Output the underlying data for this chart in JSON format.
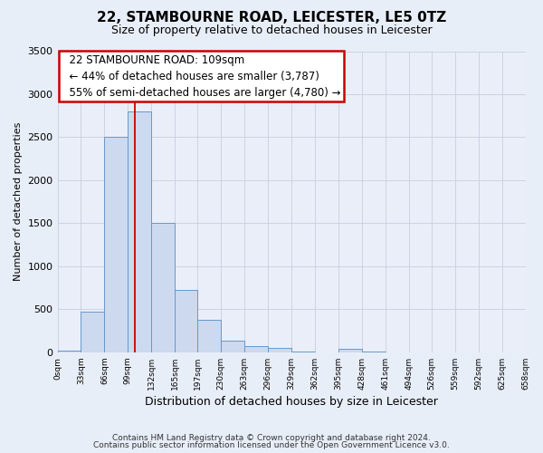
{
  "title": "22, STAMBOURNE ROAD, LEICESTER, LE5 0TZ",
  "subtitle": "Size of property relative to detached houses in Leicester",
  "xlabel": "Distribution of detached houses by size in Leicester",
  "ylabel": "Number of detached properties",
  "bar_color": "#ccd9ee",
  "bar_edge_color": "#6699cc",
  "background_color": "#e8eef8",
  "plot_bg_color": "#eaeef8",
  "grid_color": "#c8cede",
  "vline_x": 109,
  "vline_color": "#cc0000",
  "ylim": [
    0,
    3500
  ],
  "bin_edges": [
    0,
    33,
    66,
    99,
    132,
    165,
    197,
    230,
    263,
    296,
    329,
    362,
    395,
    428,
    461,
    494,
    526,
    559,
    592,
    625,
    658
  ],
  "bar_heights": [
    20,
    470,
    2500,
    2800,
    1500,
    730,
    380,
    140,
    70,
    50,
    10,
    0,
    40,
    10,
    0,
    0,
    0,
    0,
    0,
    0
  ],
  "annotation_line1": "22 STAMBOURNE ROAD: 109sqm",
  "annotation_line2": "← 44% of detached houses are smaller (3,787)",
  "annotation_line3": "55% of semi-detached houses are larger (4,780) →",
  "annotation_box_color": "#ffffff",
  "annotation_border_color": "#cc0000",
  "footer_line1": "Contains HM Land Registry data © Crown copyright and database right 2024.",
  "footer_line2": "Contains public sector information licensed under the Open Government Licence v3.0.",
  "yticks": [
    0,
    500,
    1000,
    1500,
    2000,
    2500,
    3000,
    3500
  ]
}
